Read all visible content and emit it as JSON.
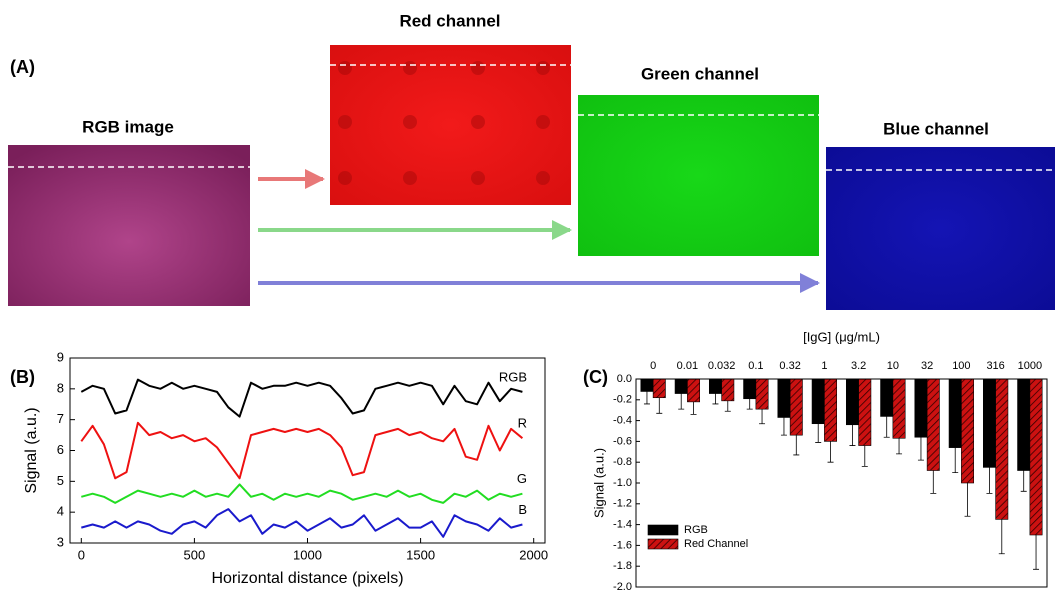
{
  "panel_a": {
    "label": "(A)",
    "images": [
      {
        "title": "RGB image"
      },
      {
        "title": "Red channel"
      },
      {
        "title": "Green channel"
      },
      {
        "title": "Blue channel"
      }
    ]
  },
  "chart_data": [
    {
      "type": "line",
      "label": "(B)",
      "xlabel": "Horizontal distance (pixels)",
      "ylabel": "Signal (a.u.)",
      "x": [
        0,
        50,
        100,
        150,
        200,
        250,
        300,
        350,
        400,
        450,
        500,
        550,
        600,
        650,
        700,
        750,
        800,
        850,
        900,
        950,
        1000,
        1050,
        1100,
        1150,
        1200,
        1250,
        1300,
        1350,
        1400,
        1450,
        1500,
        1550,
        1600,
        1650,
        1700,
        1750,
        1800,
        1850,
        1900,
        1950
      ],
      "series": [
        {
          "name": "RGB",
          "color": "#000000",
          "values": [
            7.9,
            8.1,
            8.0,
            7.2,
            7.3,
            8.3,
            8.1,
            8.0,
            8.2,
            8.0,
            8.1,
            8.0,
            7.9,
            7.4,
            7.1,
            8.2,
            8.0,
            8.1,
            8.1,
            8.2,
            8.1,
            8.2,
            8.1,
            7.7,
            7.2,
            7.3,
            8.0,
            8.1,
            8.2,
            8.1,
            8.2,
            8.1,
            7.5,
            8.1,
            7.6,
            7.5,
            8.2,
            7.6,
            8.0,
            7.9
          ]
        },
        {
          "name": "R",
          "color": "#ee1111",
          "values": [
            6.3,
            6.8,
            6.2,
            5.1,
            5.3,
            6.9,
            6.5,
            6.6,
            6.4,
            6.5,
            6.3,
            6.4,
            6.1,
            5.6,
            5.1,
            6.5,
            6.6,
            6.7,
            6.6,
            6.7,
            6.6,
            6.7,
            6.5,
            6.1,
            5.2,
            5.3,
            6.5,
            6.6,
            6.7,
            6.5,
            6.6,
            6.4,
            6.3,
            6.7,
            5.8,
            5.7,
            6.8,
            6.0,
            6.7,
            6.4
          ]
        },
        {
          "name": "G",
          "color": "#22dd22",
          "values": [
            4.5,
            4.6,
            4.5,
            4.3,
            4.5,
            4.7,
            4.6,
            4.5,
            4.6,
            4.5,
            4.7,
            4.5,
            4.6,
            4.5,
            4.9,
            4.5,
            4.6,
            4.4,
            4.6,
            4.5,
            4.6,
            4.5,
            4.7,
            4.6,
            4.4,
            4.5,
            4.6,
            4.5,
            4.7,
            4.5,
            4.6,
            4.4,
            4.3,
            4.6,
            4.5,
            4.7,
            4.4,
            4.6,
            4.5,
            4.6
          ]
        },
        {
          "name": "B",
          "color": "#1a1acc",
          "values": [
            3.5,
            3.6,
            3.5,
            3.7,
            3.5,
            3.7,
            3.6,
            3.4,
            3.3,
            3.6,
            3.7,
            3.5,
            3.9,
            4.1,
            3.7,
            3.9,
            3.3,
            3.6,
            3.5,
            3.7,
            3.4,
            3.6,
            3.8,
            3.5,
            3.6,
            3.9,
            3.4,
            3.6,
            3.8,
            3.5,
            3.5,
            3.7,
            3.2,
            3.9,
            3.7,
            3.6,
            3.4,
            3.8,
            3.5,
            3.6
          ]
        }
      ],
      "xlim": [
        -50,
        2050
      ],
      "xticks": [
        0,
        500,
        1000,
        1500,
        2000
      ],
      "ylim": [
        3,
        9
      ],
      "yticks": [
        3,
        4,
        5,
        6,
        7,
        8,
        9
      ]
    },
    {
      "type": "bar",
      "label": "(C)",
      "xlabel": "[IgG] (μg/mL)",
      "ylabel": "Signal (a.u.)",
      "categories": [
        "0",
        "0.01",
        "0.032",
        "0.1",
        "0.32",
        "1",
        "3.2",
        "10",
        "32",
        "100",
        "316",
        "1000"
      ],
      "series": [
        {
          "name": "RGB",
          "color": "#000000",
          "values": [
            -0.12,
            -0.14,
            -0.14,
            -0.19,
            -0.37,
            -0.43,
            -0.44,
            -0.36,
            -0.56,
            -0.66,
            -0.85,
            -0.88
          ],
          "errors": [
            0.12,
            0.15,
            0.1,
            0.1,
            0.17,
            0.18,
            0.2,
            0.2,
            0.22,
            0.24,
            0.25,
            0.2
          ]
        },
        {
          "name": "Red Channel",
          "color": "#cc1111",
          "hatch": true,
          "values": [
            -0.18,
            -0.22,
            -0.21,
            -0.29,
            -0.54,
            -0.6,
            -0.64,
            -0.57,
            -0.88,
            -1.0,
            -1.35,
            -1.5
          ],
          "errors": [
            0.15,
            0.12,
            0.1,
            0.14,
            0.19,
            0.2,
            0.2,
            0.15,
            0.22,
            0.32,
            0.33,
            0.33
          ]
        }
      ],
      "ylim": [
        -2.0,
        0.0
      ],
      "yticks": [
        {
          "value": 0,
          "label": "0.0"
        },
        -0.2,
        -0.4,
        -0.6,
        -0.8,
        {
          "value": -1,
          "label": "-1.0"
        },
        -1.2,
        -1.4,
        -1.6,
        -1.8,
        {
          "value": -2,
          "label": "-2.0"
        }
      ]
    }
  ]
}
